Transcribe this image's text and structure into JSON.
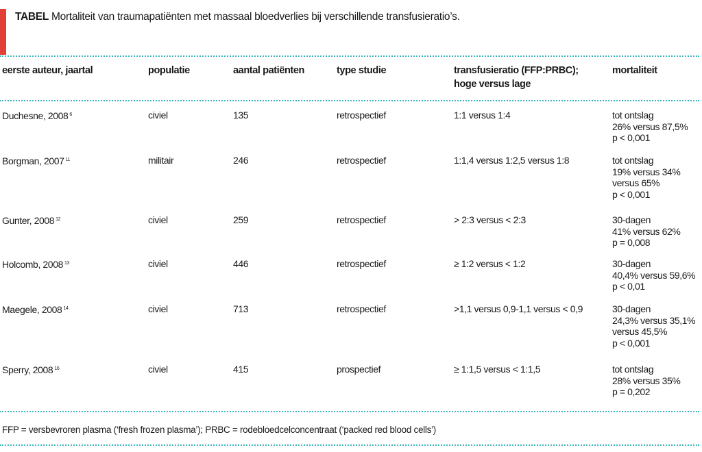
{
  "caption": {
    "label": "TABEL",
    "text": "Mortaliteit van traumapatiënten met massaal bloedverlies bij verschillende transfusieratio’s."
  },
  "table": {
    "headers": [
      "eerste auteur, jaartal",
      "populatie",
      "aantal patiënten",
      "type studie",
      "transfusieratio (FFP:PRBC); hoge versus lage",
      "mortaliteit"
    ],
    "rows": [
      {
        "author": "Duchesne, 2008",
        "ref": "6",
        "population": "civiel",
        "patients": "135",
        "study_type": "retrospectief",
        "ratio": "1:1 versus 1:4",
        "mortality": [
          "tot ontslag",
          "26% versus 87,5%",
          "p < 0,001"
        ]
      },
      {
        "author": "Borgman, 2007",
        "ref": "11",
        "population": "militair",
        "patients": "246",
        "study_type": "retrospectief",
        "ratio": "1:1,4 versus 1:2,5 versus 1:8",
        "mortality": [
          "tot ontslag",
          "19% versus 34%",
          "versus 65%",
          "p < 0,001"
        ]
      },
      {
        "author": "Gunter, 2008",
        "ref": "12",
        "population": "civiel",
        "patients": "259",
        "study_type": "retrospectief",
        "ratio": "> 2:3 versus < 2:3",
        "mortality": [
          "30-dagen",
          "41% versus 62%",
          "p = 0,008"
        ]
      },
      {
        "author": "Holcomb, 2008",
        "ref": "13",
        "population": "civiel",
        "patients": "446",
        "study_type": "retrospectief",
        "ratio": "≥ 1:2 versus < 1:2",
        "mortality": [
          "30-dagen",
          "40,4% versus 59,6%",
          "p < 0,01"
        ]
      },
      {
        "author": "Maegele, 2008",
        "ref": "14",
        "population": "civiel",
        "patients": "713",
        "study_type": "retrospectief",
        "ratio": ">1,1 versus 0,9-1,1 versus < 0,9",
        "mortality": [
          "30-dagen",
          "24,3% versus 35,1%",
          "versus 45,5%",
          "p < 0,001"
        ]
      },
      {
        "author": "Sperry, 2008",
        "ref": "16",
        "population": "civiel",
        "patients": "415",
        "study_type": "prospectief",
        "ratio": "≥ 1:1,5 versus < 1:1,5",
        "mortality": [
          "tot ontslag",
          "28% versus 35%",
          "p = 0,202"
        ]
      }
    ]
  },
  "footnote": "FFP = versbevroren plasma (‘fresh frozen plasma’); PRBC = rodebloedcelconcentraat (‘packed red blood cells’)",
  "colors": {
    "accent": "#e23f36",
    "rule": "#3fb6bf"
  }
}
